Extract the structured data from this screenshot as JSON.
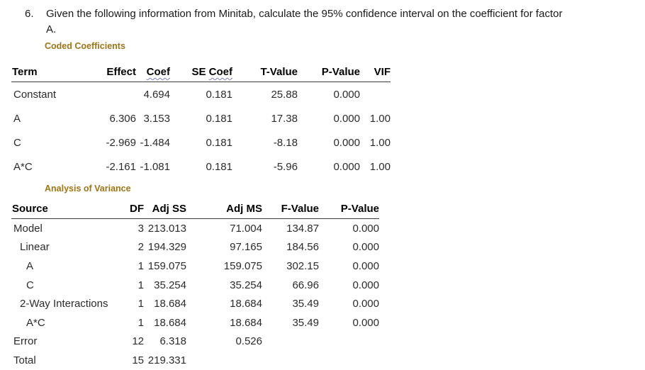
{
  "colors": {
    "heading": "#9e7514",
    "squiggle": "#7b7bd1"
  },
  "question": {
    "number": "6.",
    "line1": "Given the following information from Minitab, calculate the 95% confidence interval on the coefficient for factor",
    "line2": "A."
  },
  "coded_coefficients": {
    "title": "Coded Coefficients",
    "columns": [
      {
        "label": "Term"
      },
      {
        "label": "Effect"
      },
      {
        "pre": "",
        "label": "Coef",
        "squiggle": true
      },
      {
        "pre": "SE ",
        "label": "Coef",
        "squiggle": true
      },
      {
        "label": "T-Value"
      },
      {
        "label": "P-Value"
      },
      {
        "label": "VIF"
      }
    ],
    "rows": [
      {
        "indent": 0,
        "cells": [
          "Constant",
          "",
          "4.694",
          "0.181",
          "25.88",
          "0.000",
          ""
        ]
      },
      {
        "indent": 0,
        "cells": [
          "A",
          "6.306",
          "3.153",
          "0.181",
          "17.38",
          "0.000",
          "1.00"
        ]
      },
      {
        "indent": 0,
        "cells": [
          "C",
          "-2.969",
          "-1.484",
          "0.181",
          "-8.18",
          "0.000",
          "1.00"
        ]
      },
      {
        "indent": 0,
        "cells": [
          "A*C",
          "-2.161",
          "-1.081",
          "0.181",
          "-5.96",
          "0.000",
          "1.00"
        ]
      }
    ]
  },
  "anova": {
    "title": "Analysis of Variance",
    "columns": [
      {
        "label": "Source"
      },
      {
        "label": "DF"
      },
      {
        "label": "Adj SS"
      },
      {
        "label": "Adj MS"
      },
      {
        "label": "F-Value"
      },
      {
        "label": "P-Value"
      }
    ],
    "rows": [
      {
        "indent": 0,
        "cells": [
          "Model",
          "3",
          "213.013",
          "71.004",
          "134.87",
          "0.000"
        ]
      },
      {
        "indent": 1,
        "cells": [
          "Linear",
          "2",
          "194.329",
          "97.165",
          "184.56",
          "0.000"
        ]
      },
      {
        "indent": 2,
        "cells": [
          "A",
          "1",
          "159.075",
          "159.075",
          "302.15",
          "0.000"
        ]
      },
      {
        "indent": 2,
        "cells": [
          "C",
          "1",
          "35.254",
          "35.254",
          "66.96",
          "0.000"
        ]
      },
      {
        "indent": 1,
        "cells": [
          "2-Way Interactions",
          "1",
          "18.684",
          "18.684",
          "35.49",
          "0.000"
        ]
      },
      {
        "indent": 2,
        "cells": [
          "A*C",
          "1",
          "18.684",
          "18.684",
          "35.49",
          "0.000"
        ]
      },
      {
        "indent": 0,
        "cells": [
          "Error",
          "12",
          "6.318",
          "0.526",
          "",
          ""
        ]
      },
      {
        "indent": 0,
        "cells": [
          "Total",
          "15",
          "219.331",
          "",
          "",
          ""
        ]
      }
    ]
  }
}
